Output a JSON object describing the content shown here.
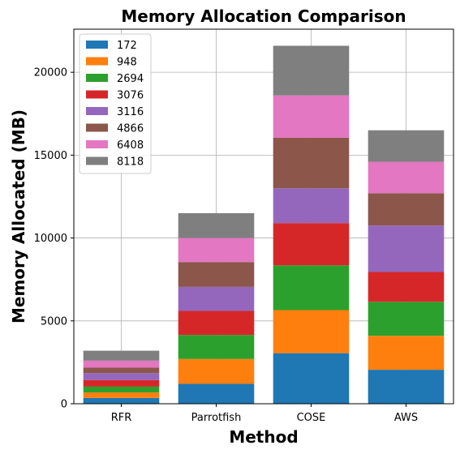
{
  "chart_data": {
    "type": "bar",
    "stacked": true,
    "title": "Memory Allocation Comparison",
    "xlabel": "Method",
    "ylabel": "Memory Allocated (MB)",
    "categories": [
      "RFR",
      "Parrotfish",
      "COSE",
      "AWS"
    ],
    "ylim": [
      0,
      22600
    ],
    "yticks": [
      0,
      5000,
      10000,
      15000,
      20000
    ],
    "grid": true,
    "legend_position": "top-left",
    "series": [
      {
        "name": "172",
        "color": "#1f77b4",
        "values": [
          350,
          1200,
          3050,
          2050
        ]
      },
      {
        "name": "948",
        "color": "#ff7f0e",
        "values": [
          330,
          1500,
          2600,
          2050
        ]
      },
      {
        "name": "2694",
        "color": "#2ca02c",
        "values": [
          350,
          1450,
          2700,
          2050
        ]
      },
      {
        "name": "3076",
        "color": "#d62728",
        "values": [
          400,
          1450,
          2550,
          1800
        ]
      },
      {
        "name": "3116",
        "color": "#9467bd",
        "values": [
          420,
          1450,
          2100,
          2800
        ]
      },
      {
        "name": "4866",
        "color": "#8c564b",
        "values": [
          330,
          1500,
          3050,
          1950
        ]
      },
      {
        "name": "6408",
        "color": "#e377c2",
        "values": [
          420,
          1450,
          2550,
          1900
        ]
      },
      {
        "name": "8118",
        "color": "#7f7f7f",
        "values": [
          600,
          1500,
          3000,
          1900
        ]
      }
    ]
  }
}
